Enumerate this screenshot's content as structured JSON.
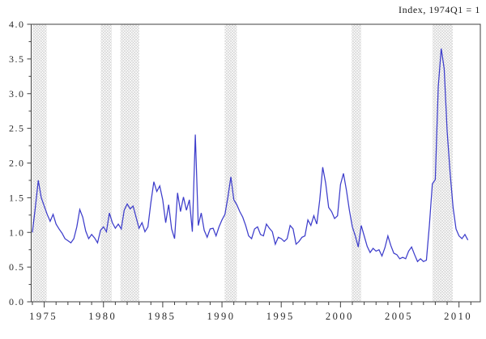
{
  "chart_data": {
    "type": "line",
    "title": "Index, 1974Q1 = 1",
    "series_description": "quarterly index line",
    "line_color": "#3d3dcb",
    "axis_color": "#3f3f3f",
    "band_hatch_color": "#c9c9c9",
    "background_color": "#ffffff",
    "ylim": [
      0.0,
      4.0
    ],
    "x_axis_range": [
      1973.9,
      2011.8
    ],
    "x_start_year": 1974,
    "points_per_year": 4,
    "y_ticks": [
      {
        "label": "0.0",
        "value": 0.0
      },
      {
        "label": "0.5",
        "value": 0.5
      },
      {
        "label": "1.0",
        "value": 1.0
      },
      {
        "label": "1.5",
        "value": 1.5
      },
      {
        "label": "2.0",
        "value": 2.0
      },
      {
        "label": "2.5",
        "value": 2.5
      },
      {
        "label": "3.0",
        "value": 3.0
      },
      {
        "label": "3.5",
        "value": 3.5
      },
      {
        "label": "4.0",
        "value": 4.0
      }
    ],
    "y_minor_tick_step": 0.25,
    "x_ticks": [
      {
        "label": "1975",
        "year": 1975
      },
      {
        "label": "1980",
        "year": 1980
      },
      {
        "label": "1985",
        "year": 1985
      },
      {
        "label": "1990",
        "year": 1990
      },
      {
        "label": "1995",
        "year": 1995
      },
      {
        "label": "2000",
        "year": 2000
      },
      {
        "label": "2005",
        "year": 2005
      },
      {
        "label": "2010",
        "year": 2010
      }
    ],
    "x_minor_tick_years": {
      "start": 1974,
      "end": 2011,
      "step": 1
    },
    "recession_bands": [
      [
        1974.0,
        1975.21
      ],
      [
        1979.77,
        1980.69
      ],
      [
        1981.42,
        1983.02
      ],
      [
        1990.23,
        1991.26
      ],
      [
        2000.94,
        2001.74
      ],
      [
        2007.77,
        2009.48
      ]
    ],
    "values": [
      1.0,
      1.36,
      1.75,
      1.5,
      1.38,
      1.26,
      1.16,
      1.26,
      1.12,
      1.05,
      0.99,
      0.91,
      0.88,
      0.85,
      0.91,
      1.08,
      1.33,
      1.22,
      1.02,
      0.91,
      0.97,
      0.92,
      0.85,
      1.03,
      1.08,
      1.01,
      1.28,
      1.14,
      1.06,
      1.12,
      1.05,
      1.32,
      1.41,
      1.34,
      1.38,
      1.22,
      1.06,
      1.14,
      1.01,
      1.08,
      1.43,
      1.73,
      1.59,
      1.67,
      1.47,
      1.14,
      1.4,
      1.05,
      0.91,
      1.57,
      1.3,
      1.51,
      1.32,
      1.47,
      1.01,
      2.41,
      1.1,
      1.28,
      1.03,
      0.93,
      1.05,
      1.06,
      0.95,
      1.08,
      1.18,
      1.26,
      1.51,
      1.8,
      1.47,
      1.4,
      1.3,
      1.22,
      1.1,
      0.95,
      0.91,
      1.05,
      1.08,
      0.97,
      0.95,
      1.12,
      1.06,
      1.01,
      0.83,
      0.93,
      0.91,
      0.87,
      0.91,
      1.1,
      1.05,
      0.83,
      0.87,
      0.93,
      0.95,
      1.18,
      1.1,
      1.24,
      1.12,
      1.47,
      1.94,
      1.71,
      1.36,
      1.3,
      1.2,
      1.24,
      1.69,
      1.85,
      1.61,
      1.32,
      1.08,
      0.95,
      0.79,
      1.1,
      0.95,
      0.8,
      0.71,
      0.77,
      0.73,
      0.75,
      0.66,
      0.78,
      0.95,
      0.81,
      0.7,
      0.68,
      0.62,
      0.64,
      0.62,
      0.73,
      0.79,
      0.68,
      0.58,
      0.62,
      0.58,
      0.6,
      1.1,
      1.7,
      1.76,
      3.1,
      3.65,
      3.36,
      2.46,
      1.86,
      1.36,
      1.05,
      0.95,
      0.91,
      0.97,
      0.89
    ],
    "grid": false,
    "legend": "none"
  }
}
